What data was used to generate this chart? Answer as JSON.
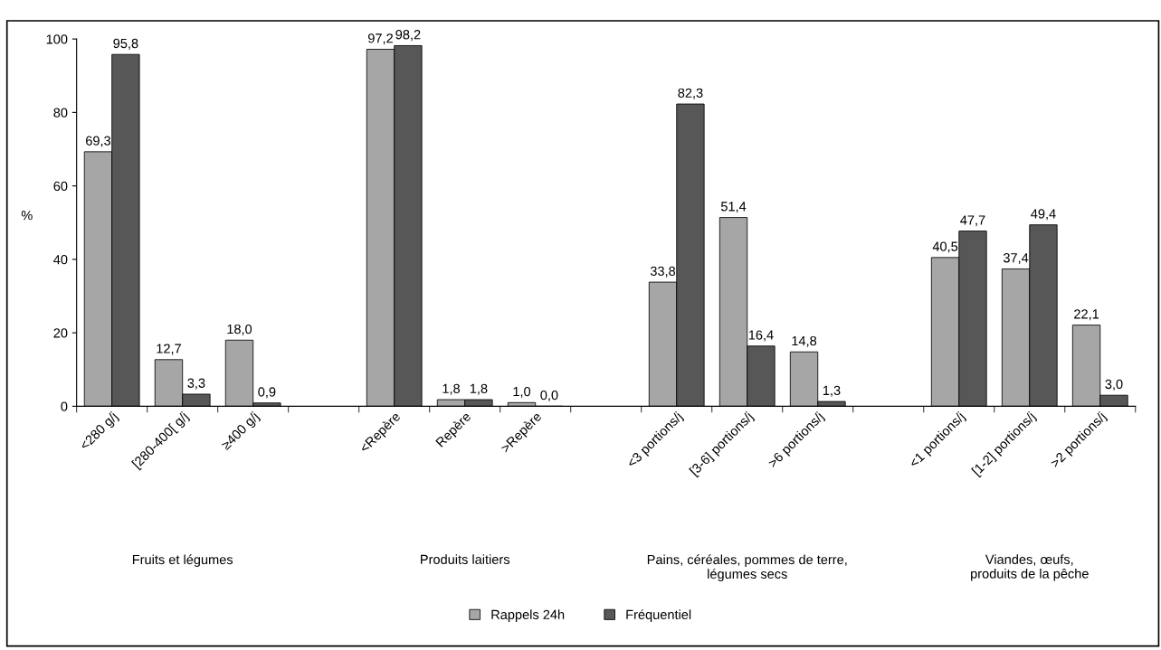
{
  "chart_data": {
    "type": "bar",
    "ylabel": "%",
    "categories": [
      "<280 g/j",
      "[280-400[ g/j",
      "≥400 g/j",
      null,
      "<Repère",
      "Repère",
      ">Repère",
      null,
      "<3 portions/j",
      "[3-6] portions/j",
      ">6 portions/j",
      null,
      "<1 portions/j",
      "[1-2] portions/j",
      ">2 portions/j"
    ],
    "series": [
      {
        "name": "Rappels 24h",
        "color": "#a6a6a6",
        "values": [
          69.3,
          12.7,
          18.0,
          null,
          97.2,
          1.8,
          1.0,
          null,
          33.8,
          51.4,
          14.8,
          null,
          40.5,
          37.4,
          22.1
        ],
        "value_labels": [
          "69,3",
          "12,7",
          "18,0",
          null,
          "97,2",
          "1,8",
          "1,0",
          null,
          "33,8",
          "51,4",
          "14,8",
          null,
          "40,5",
          "37,4",
          "22,1"
        ]
      },
      {
        "name": "Fréquentiel",
        "color": "#575757",
        "values": [
          95.8,
          3.3,
          0.9,
          null,
          98.2,
          1.8,
          0.0,
          null,
          82.3,
          16.4,
          1.3,
          null,
          47.7,
          49.4,
          3.0
        ],
        "value_labels": [
          "95,8",
          "3,3",
          "0,9",
          null,
          "98,2",
          "1,8",
          "0,0",
          null,
          "82,3",
          "16,4",
          "1,3",
          null,
          "47,7",
          "49,4",
          "3,0"
        ]
      }
    ],
    "annotations": [
      "Fruits et légumes",
      "Produits laitiers",
      "Pains, céréales, pommes de terre,\nlégumes secs",
      "Viandes, œufs,\nproduits de la pêche"
    ],
    "ylim": [
      0,
      100
    ],
    "yticks": [
      0,
      20,
      40,
      60,
      80,
      100
    ],
    "grid": false,
    "legend": "bottom"
  }
}
